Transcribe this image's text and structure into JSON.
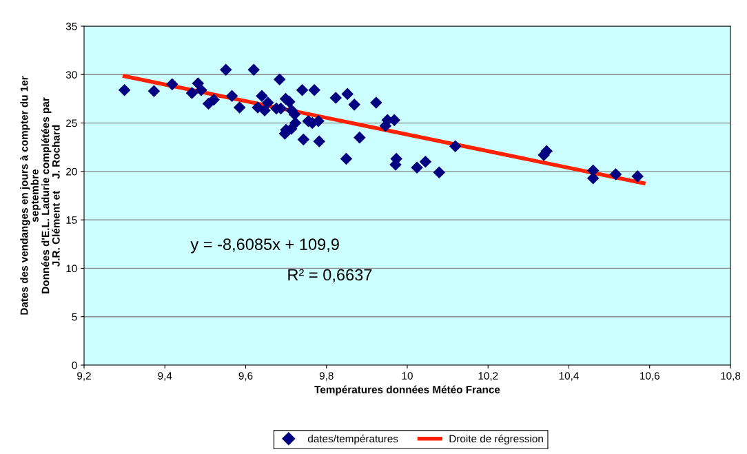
{
  "chart_data": {
    "type": "scatter",
    "xlabel": "Températures données Météo France",
    "ylabel": "Dates des vendanges en jours à compter du 1er\nseptembre\nDonnées d'E.L. Ladurie complétées par\nJ.R. Clément et    J. Rochard",
    "annotations": [
      "y = -8,6085x + 109,9",
      "R² = 0,6637"
    ],
    "xlim": [
      9.2,
      10.8
    ],
    "xticks": [
      {
        "value": 9.2,
        "label": "9,2"
      },
      {
        "value": 9.4,
        "label": "9,4"
      },
      {
        "value": 9.6,
        "label": "9,6"
      },
      {
        "value": 9.8,
        "label": "9,8"
      },
      {
        "value": 10,
        "label": "10"
      },
      {
        "value": 10.2,
        "label": "10,2"
      },
      {
        "value": 10.4,
        "label": "10,4"
      },
      {
        "value": 10.6,
        "label": "10,6"
      },
      {
        "value": 10.8,
        "label": "10,8"
      }
    ],
    "ylim": [
      0,
      35
    ],
    "yticks": [
      0,
      5,
      10,
      15,
      20,
      25,
      30,
      35
    ],
    "grid": "y",
    "legend": "bottom",
    "series": [
      {
        "name": "dates/températures",
        "marker": "diamond",
        "color": "#000080",
        "x": [
          9.3,
          9.373,
          9.418,
          9.467,
          9.482,
          9.49,
          9.508,
          9.521,
          9.551,
          9.566,
          9.585,
          9.62,
          9.63,
          9.64,
          9.647,
          9.655,
          9.676,
          9.684,
          9.687,
          9.699,
          9.697,
          9.7,
          9.708,
          9.714,
          9.721,
          9.713,
          9.723,
          9.74,
          9.743,
          9.755,
          9.77,
          9.765,
          9.78,
          9.782,
          9.823,
          9.852,
          9.849,
          9.869,
          9.882,
          9.923,
          9.946,
          9.951,
          9.968,
          9.973,
          9.971,
          10.024,
          10.045,
          10.079,
          10.119,
          10.338,
          10.345,
          10.46,
          10.46,
          10.516,
          10.57
        ],
        "values": [
          28.4,
          28.3,
          29.0,
          28.1,
          29.1,
          28.4,
          27.0,
          27.4,
          30.5,
          27.8,
          26.6,
          30.5,
          26.6,
          27.8,
          26.3,
          27.1,
          26.5,
          29.5,
          26.5,
          27.5,
          23.9,
          24.3,
          27.2,
          26.3,
          25.9,
          24.4,
          25.0,
          28.4,
          23.3,
          25.2,
          28.4,
          25.0,
          25.2,
          23.1,
          27.6,
          28.0,
          21.3,
          26.9,
          23.5,
          27.1,
          24.7,
          25.3,
          25.3,
          21.3,
          20.7,
          20.4,
          21.0,
          19.9,
          22.6,
          21.7,
          22.1,
          20.1,
          19.3,
          19.7,
          19.5
        ]
      },
      {
        "name": "Droite de régression",
        "type": "line",
        "color": "#ff2200",
        "x": [
          9.3,
          10.585
        ],
        "values": [
          29.84,
          18.78
        ]
      }
    ]
  }
}
